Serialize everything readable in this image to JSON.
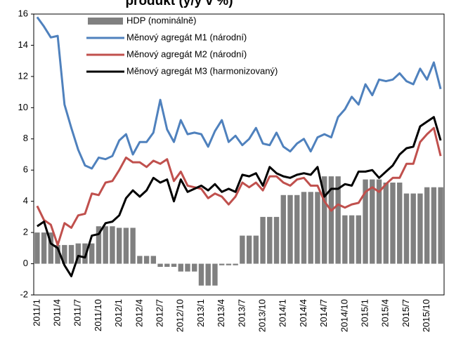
{
  "chart_data": {
    "type": "bar-line",
    "title": "produkt (y/y v %)",
    "categories": [
      "2011/1",
      null,
      null,
      "2011/4",
      null,
      null,
      "2011/7",
      null,
      null,
      "2011/10",
      null,
      null,
      "2012/1",
      null,
      null,
      "2012/4",
      null,
      null,
      "2012/7",
      null,
      null,
      "2012/10",
      null,
      null,
      "2013/1",
      null,
      null,
      "2013/4",
      null,
      null,
      "2013/7",
      null,
      null,
      "2013/10",
      null,
      null,
      "2014/1",
      null,
      null,
      "2014/4",
      null,
      null,
      "2014/7",
      null,
      null,
      "2014/10",
      null,
      null,
      "2015/1",
      null,
      null,
      "2015/4",
      null,
      null,
      "2015/7",
      null,
      null,
      "2015/10",
      null,
      null
    ],
    "series": [
      {
        "name": "HDP (nominálně)",
        "kind": "bar",
        "color": "#808080",
        "values": [
          2.0,
          2.0,
          2.0,
          1.2,
          1.2,
          1.2,
          1.3,
          1.3,
          1.3,
          2.4,
          2.4,
          2.4,
          2.3,
          2.3,
          2.3,
          0.5,
          0.5,
          0.5,
          -0.2,
          -0.2,
          -0.2,
          -0.5,
          -0.5,
          -0.5,
          -1.4,
          -1.4,
          -1.4,
          -0.1,
          -0.1,
          -0.1,
          1.8,
          1.8,
          1.8,
          3.0,
          3.0,
          3.0,
          4.4,
          4.4,
          4.4,
          4.6,
          4.6,
          4.6,
          5.6,
          5.6,
          5.6,
          3.1,
          3.1,
          3.1,
          5.4,
          5.4,
          5.4,
          5.2,
          5.2,
          5.2,
          4.5,
          4.5,
          4.5,
          4.9,
          4.9,
          4.9
        ]
      },
      {
        "name": "Měnový agregát M1 (národní)",
        "kind": "line",
        "color": "#4f81bd",
        "values": [
          15.8,
          15.2,
          14.5,
          14.6,
          10.2,
          8.7,
          7.3,
          6.3,
          6.1,
          6.8,
          6.7,
          6.9,
          7.9,
          8.3,
          7.0,
          7.8,
          7.8,
          8.4,
          10.5,
          8.6,
          7.8,
          9.2,
          8.3,
          8.4,
          8.3,
          7.5,
          8.5,
          9.2,
          7.8,
          8.2,
          7.6,
          8.0,
          8.7,
          7.7,
          7.6,
          8.4,
          7.5,
          7.2,
          7.7,
          8.0,
          7.2,
          8.1,
          8.3,
          8.1,
          9.4,
          9.9,
          10.7,
          10.2,
          11.5,
          10.8,
          11.8,
          11.7,
          11.8,
          12.2,
          11.7,
          11.5,
          12.5,
          11.8,
          12.9,
          11.2
        ]
      },
      {
        "name": "Měnový agregát M2 (národní)",
        "kind": "line",
        "color": "#c0504d",
        "values": [
          3.7,
          2.8,
          2.5,
          1.2,
          2.6,
          2.3,
          3.1,
          3.2,
          4.5,
          4.4,
          5.2,
          5.3,
          6.0,
          6.8,
          6.5,
          6.5,
          6.2,
          6.6,
          6.4,
          6.7,
          5.3,
          5.9,
          5.0,
          4.9,
          4.8,
          4.2,
          4.5,
          4.3,
          3.8,
          4.3,
          5.2,
          4.9,
          5.2,
          4.7,
          5.6,
          5.6,
          5.2,
          5.0,
          5.4,
          5.5,
          5.0,
          5.0,
          4.0,
          3.4,
          3.8,
          3.6,
          3.8,
          3.9,
          4.6,
          4.9,
          4.6,
          5.1,
          5.5,
          5.5,
          6.4,
          6.4,
          7.8,
          8.3,
          8.7,
          6.9
        ]
      },
      {
        "name": "Měnový agregát M3 (harmonizovaný)",
        "kind": "line",
        "color": "#000000",
        "values": [
          2.4,
          2.7,
          1.3,
          1.0,
          -0.1,
          -0.8,
          0.5,
          0.4,
          1.8,
          1.9,
          2.6,
          2.7,
          3.1,
          4.2,
          4.7,
          4.3,
          4.7,
          5.5,
          5.2,
          5.4,
          4.0,
          5.4,
          4.6,
          4.8,
          5.0,
          4.7,
          5.1,
          4.6,
          4.8,
          4.6,
          5.7,
          5.6,
          5.8,
          5.0,
          6.2,
          5.8,
          5.6,
          5.5,
          5.7,
          5.8,
          5.7,
          6.2,
          4.3,
          4.8,
          4.8,
          5.1,
          5.0,
          5.9,
          5.9,
          6.0,
          5.5,
          5.9,
          6.3,
          7.0,
          7.4,
          7.5,
          8.8,
          9.1,
          9.4,
          7.9
        ]
      }
    ],
    "ylim": [
      -2,
      16
    ],
    "yticks": [
      -2,
      0,
      2,
      4,
      6,
      8,
      10,
      12,
      14,
      16
    ],
    "grid": false
  }
}
